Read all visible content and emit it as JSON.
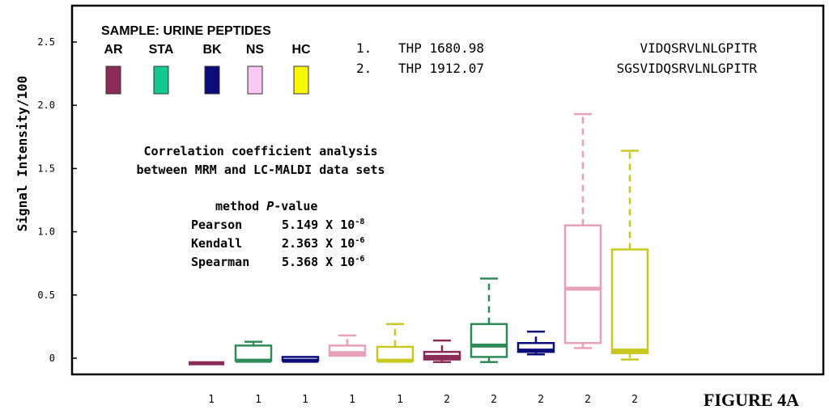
{
  "chart_data": {
    "type": "boxplot",
    "ylabel": "Signal Intensity/100",
    "y_ticks": [
      "0",
      "0.5",
      "1.0",
      "1.5",
      "2.0",
      "2.5"
    ],
    "y_tick_values": [
      0,
      0.5,
      1.0,
      1.5,
      2.0,
      2.5
    ],
    "ylim": [
      -0.12,
      2.75
    ],
    "x_tick_labels": [
      "1",
      "1",
      "1",
      "1",
      "1",
      "2",
      "2",
      "2",
      "2",
      "2"
    ],
    "legend_title": "SAMPLE: URINE PEPTIDES",
    "legend": [
      {
        "label": "AR",
        "color": "#8b2c58"
      },
      {
        "label": "STA",
        "color": "#12c98e"
      },
      {
        "label": "BK",
        "color": "#0b0b7a"
      },
      {
        "label": "NS",
        "color": "#f8c8f0"
      },
      {
        "label": "HC",
        "color": "#f8f800"
      }
    ],
    "boxes": [
      {
        "sample": "AR",
        "peptide": "1",
        "min": -0.04,
        "q1": -0.04,
        "median": -0.04,
        "q3": -0.04,
        "max": -0.04,
        "color": "#8b2c58"
      },
      {
        "sample": "STA",
        "peptide": "1",
        "min": -0.02,
        "q1": -0.02,
        "median": -0.02,
        "q3": 0.1,
        "max": 0.13,
        "color": "#2e8b57"
      },
      {
        "sample": "BK",
        "peptide": "1",
        "min": -0.02,
        "q1": -0.02,
        "median": -0.02,
        "q3": 0.01,
        "max": 0.01,
        "color": "#0b0b7a"
      },
      {
        "sample": "NS",
        "peptide": "1",
        "min": 0.02,
        "q1": 0.02,
        "median": 0.04,
        "q3": 0.1,
        "max": 0.18,
        "color": "#e8a0b8"
      },
      {
        "sample": "HC",
        "peptide": "1",
        "min": -0.02,
        "q1": -0.02,
        "median": -0.02,
        "q3": 0.09,
        "max": 0.27,
        "color": "#c8c820"
      },
      {
        "sample": "AR",
        "peptide": "2",
        "min": -0.03,
        "q1": -0.01,
        "median": 0.01,
        "q3": 0.05,
        "max": 0.14,
        "color": "#8b2c58"
      },
      {
        "sample": "STA",
        "peptide": "2",
        "min": -0.03,
        "q1": 0.01,
        "median": 0.1,
        "q3": 0.27,
        "max": 0.63,
        "color": "#2e8b57"
      },
      {
        "sample": "BK",
        "peptide": "2",
        "min": 0.03,
        "q1": 0.05,
        "median": 0.06,
        "q3": 0.12,
        "max": 0.21,
        "color": "#0b0b7a"
      },
      {
        "sample": "NS",
        "peptide": "2",
        "min": 0.08,
        "q1": 0.12,
        "median": 0.55,
        "q3": 1.05,
        "max": 1.93,
        "color": "#e8a0b8"
      },
      {
        "sample": "HC",
        "peptide": "2",
        "min": -0.01,
        "q1": 0.04,
        "median": 0.06,
        "q3": 0.86,
        "max": 1.64,
        "color": "#c8c820"
      }
    ]
  },
  "peptides": [
    {
      "num": "1.",
      "name": "THP 1680.98",
      "sequence": "VIDQSRVLNLGPITR"
    },
    {
      "num": "2.",
      "name": "THP 1912.07",
      "sequence": "SGSVIDQSRVLNLGPITR"
    }
  ],
  "annotation": {
    "line1": "Correlation coefficient analysis",
    "line2": "between MRM and LC-MALDI data sets",
    "table_header_method": "method ",
    "table_header_p": "P",
    "table_header_rest": "-value",
    "rows": [
      {
        "method": "Pearson",
        "value": "5.149 X 10",
        "exp": "-8"
      },
      {
        "method": "Kendall",
        "value": "2.363 X 10",
        "exp": "-6"
      },
      {
        "method": "Spearman",
        "value": "5.368 X 10",
        "exp": "-6"
      }
    ]
  },
  "figure_label": "FIGURE 4A"
}
